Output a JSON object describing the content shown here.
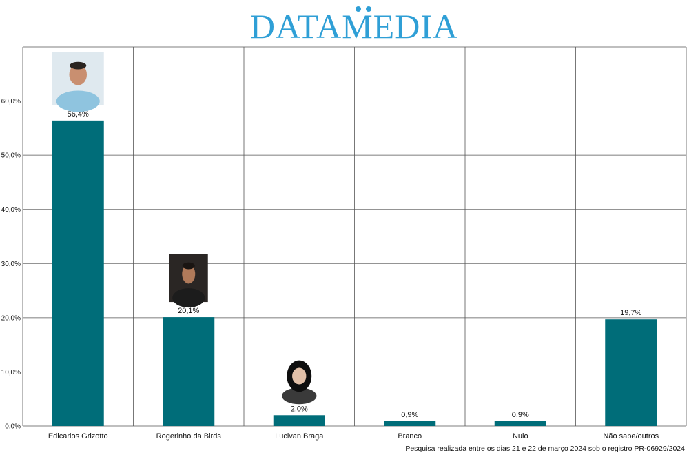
{
  "brand": {
    "name": "DATAMEDIA",
    "color": "#2f9fd6"
  },
  "footnote": "Pesquisa realizada entre os dias 21 e 22 de março 2024 sob o registro PR-06929/2024",
  "chart_data": {
    "type": "bar",
    "title": "",
    "xlabel": "",
    "ylabel": "",
    "ylim": [
      0,
      70
    ],
    "yticks": [
      0,
      10,
      20,
      30,
      40,
      50,
      60
    ],
    "ytick_labels": [
      "0,0%",
      "10,0%",
      "20,0%",
      "30,0%",
      "40,0%",
      "50,0%",
      "60,0%"
    ],
    "categories": [
      "Edicarlos Grizotto",
      "Rogerinho da Birds",
      "Lucivan Braga",
      "Branco",
      "Nulo",
      "Não sabe/outros"
    ],
    "values": [
      56.4,
      20.1,
      2.0,
      0.9,
      0.9,
      19.7
    ],
    "value_labels": [
      "56,4%",
      "20,1%",
      "2,0%",
      "0,9%",
      "0,9%",
      "19,7%"
    ],
    "candidate_photos": [
      true,
      true,
      true,
      false,
      false,
      false
    ],
    "bar_color": "#006d79",
    "grid": true,
    "legend": "none"
  }
}
